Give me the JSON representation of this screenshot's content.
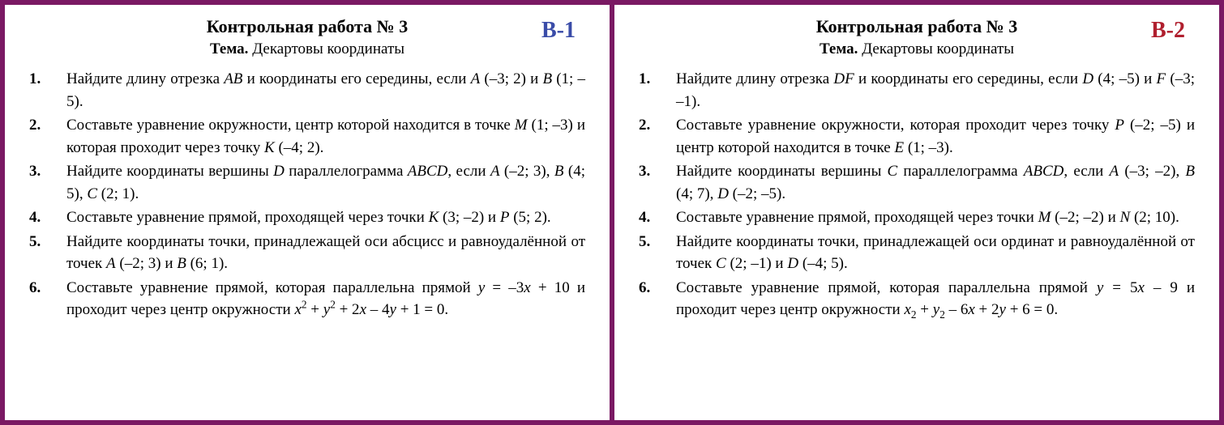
{
  "background_color": "#7a1963",
  "panel_background": "#ffffff",
  "variant_colors": [
    "#3a4ca8",
    "#b01f2e"
  ],
  "variants": [
    {
      "label": "В-1",
      "title": "Контрольная работа № 3",
      "topic_prefix": "Тема.",
      "topic": "Декартовы координаты",
      "problems": [
        "Найдите длину отрезка <i>AB</i> и координаты его середины, если <i>A</i> (–3; 2) и <i>B</i> (1; –5).",
        "Составьте уравнение окружности, центр которой находится в точке <i>M</i> (1; –3) и которая проходит через точку <i>K</i> (–4; 2).",
        "Найдите координаты вершины <i>D</i> параллелограмма <i>ABCD</i>, если <i>A</i> (–2; 3), <i>B</i> (4; 5), <i>C</i> (2; 1).",
        "Составьте уравнение прямой, проходящей через точки <i>K</i> (3; –2) и <i>P</i> (5; 2).",
        "Найдите координаты точки, принадлежащей оси абсцисс и равноудалённой от точек <i>A</i> (–2; 3) и <i>B</i> (6; 1).",
        "Составьте уравнение прямой, которая параллельна прямой <i>y</i> = –3<i>x</i> + 10 и проходит через центр окружности <i>x</i><sup>2</sup> + <i>y</i><sup>2</sup> + 2<i>x</i> – 4<i>y</i> + 1 = 0."
      ]
    },
    {
      "label": "В-2",
      "title": "Контрольная работа № 3",
      "topic_prefix": "Тема.",
      "topic": "Декартовы координаты",
      "problems": [
        "Найдите длину отрезка <i>DF</i> и координаты его середины, если <i>D</i> (4; –5) и <i>F</i> (–3; –1).",
        "Составьте уравнение окружности, которая проходит через точку <i>P</i> (–2; –5) и центр которой находится в точке <i>E</i> (1; –3).",
        "Найдите координаты вершины <i>C</i> параллелограмма <i>ABCD</i>, если <i>A</i> (–3; –2), <i>B</i> (4; 7), <i>D</i> (–2; –5).",
        "Составьте уравнение прямой, проходящей через точки <i>M</i> (–2; –2) и <i>N</i> (2; 10).",
        "Найдите координаты точки, принадлежащей оси ординат и равноудалённой от точек <i>C</i> (2; –1) и <i>D</i> (–4; 5).",
        "Составьте уравнение прямой, которая параллельна прямой <i>y</i> = 5<i>x</i> – 9 и проходит через центр окружности <i>x</i><sub>2</sub> + <i>y</i><sub>2</sub> – 6<i>x</i> + 2<i>y</i> + 6 = 0."
      ]
    }
  ]
}
